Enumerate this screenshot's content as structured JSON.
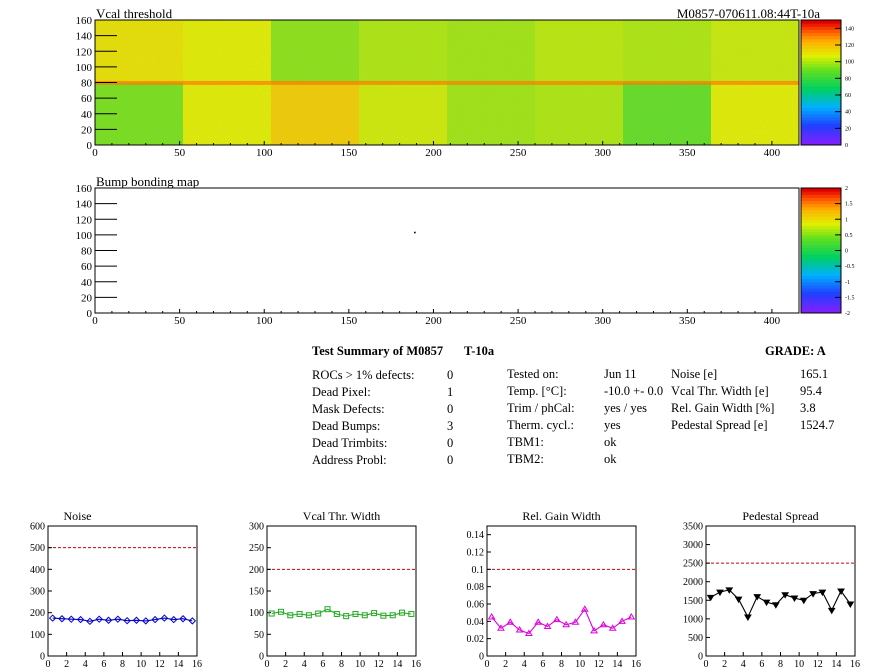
{
  "top_left_title": "Vcal threshold",
  "top_right_title": "M0857-070611.08:44T-10a",
  "map2_title": "Bump bonding map",
  "summary": {
    "title": "Test Summary of M0857",
    "temp_tag": "T-10a",
    "grade_label": "GRADE:  A",
    "left_rows": [
      {
        "label": "ROCs > 1% defects:",
        "value": "0"
      },
      {
        "label": "Dead Pixel:",
        "value": "1"
      },
      {
        "label": "Mask Defects:",
        "value": "0"
      },
      {
        "label": "Dead Bumps:",
        "value": "3"
      },
      {
        "label": "Dead Trimbits:",
        "value": "0"
      },
      {
        "label": "Address Probl:",
        "value": "0"
      }
    ],
    "mid_rows": [
      {
        "label": "Tested on:",
        "value": "Jun 11"
      },
      {
        "label": "Temp. [°C]:",
        "value": "-10.0 +- 0.0"
      },
      {
        "label": "Trim / phCal:",
        "value": "yes / yes"
      },
      {
        "label": "Therm. cycl.:",
        "value": "yes"
      },
      {
        "label": "TBM1:",
        "value": "ok"
      },
      {
        "label": "TBM2:",
        "value": "ok"
      }
    ],
    "right_rows": [
      {
        "label": "Noise [e]",
        "value": "165.1"
      },
      {
        "label": "Vcal Thr. Width [e]",
        "value": "95.4"
      },
      {
        "label": "Rel. Gain Width [%]",
        "value": "3.8"
      },
      {
        "label": "Pedestal Spread [e]",
        "value": "1524.7"
      }
    ]
  },
  "chart_data": [
    {
      "type": "heatmap",
      "title": "Vcal threshold",
      "xlim": [
        0,
        416
      ],
      "ylim": [
        0,
        160
      ],
      "x_ticks": [
        0,
        50,
        100,
        150,
        200,
        250,
        300,
        350,
        400
      ],
      "y_ticks": [
        0,
        20,
        40,
        60,
        80,
        100,
        120,
        140,
        160
      ],
      "colorbar_ticks": [
        0,
        20,
        40,
        60,
        80,
        100,
        120,
        140
      ],
      "colorbar_range": [
        0,
        150
      ],
      "roc_mean_thresholds_top": [
        112,
        108,
        95,
        100,
        98,
        102,
        100,
        104
      ],
      "roc_mean_thresholds_bottom": [
        92,
        108,
        118,
        105,
        98,
        100,
        88,
        108
      ]
    },
    {
      "type": "heatmap",
      "title": "Bump bonding map",
      "xlim": [
        0,
        416
      ],
      "ylim": [
        0,
        160
      ],
      "x_ticks": [
        0,
        50,
        100,
        150,
        200,
        250,
        300,
        350,
        400
      ],
      "y_ticks": [
        0,
        20,
        40,
        60,
        80,
        100,
        120,
        140,
        160
      ],
      "colorbar_ticks": [
        "2",
        "1.5",
        "1",
        "0.5",
        "0",
        "-0.5",
        "-1",
        "-1.5",
        "-2"
      ],
      "colorbar_range": [
        -2,
        2
      ],
      "points": [
        {
          "x": 189,
          "y": 103
        }
      ]
    },
    {
      "type": "line",
      "title": "Noise",
      "x": [
        0.5,
        1.5,
        2.5,
        3.5,
        4.5,
        5.5,
        6.5,
        7.5,
        8.5,
        9.5,
        10.5,
        11.5,
        12.5,
        13.5,
        14.5,
        15.5
      ],
      "values": [
        175,
        172,
        170,
        168,
        160,
        170,
        165,
        170,
        163,
        165,
        162,
        168,
        175,
        168,
        172,
        162
      ],
      "xlim": [
        0,
        16
      ],
      "ylim": [
        0,
        600
      ],
      "y_ticks": [
        0,
        100,
        200,
        300,
        400,
        500,
        600
      ],
      "x_ticks": [
        0,
        2,
        4,
        6,
        8,
        10,
        12,
        14,
        16
      ],
      "limit": 500,
      "color": "#0000cc",
      "marker": "diamond"
    },
    {
      "type": "line",
      "title": "Vcal Thr. Width",
      "x": [
        0.5,
        1.5,
        2.5,
        3.5,
        4.5,
        5.5,
        6.5,
        7.5,
        8.5,
        9.5,
        10.5,
        11.5,
        12.5,
        13.5,
        14.5,
        15.5
      ],
      "values": [
        98,
        102,
        94,
        97,
        94,
        98,
        108,
        97,
        92,
        97,
        94,
        99,
        93,
        94,
        100,
        97
      ],
      "xlim": [
        0,
        16
      ],
      "ylim": [
        0,
        300
      ],
      "y_ticks": [
        0,
        50,
        100,
        150,
        200,
        250,
        300
      ],
      "x_ticks": [
        0,
        2,
        4,
        6,
        8,
        10,
        12,
        14,
        16
      ],
      "limit": 200,
      "color": "#22aa22",
      "marker": "square"
    },
    {
      "type": "line",
      "title": "Rel. Gain Width",
      "x": [
        0.5,
        1.5,
        2.5,
        3.5,
        4.5,
        5.5,
        6.5,
        7.5,
        8.5,
        9.5,
        10.5,
        11.5,
        12.5,
        13.5,
        14.5,
        15.5
      ],
      "values": [
        0.045,
        0.032,
        0.039,
        0.03,
        0.026,
        0.039,
        0.034,
        0.042,
        0.036,
        0.039,
        0.054,
        0.029,
        0.036,
        0.032,
        0.04,
        0.045
      ],
      "xlim": [
        0,
        16
      ],
      "ylim": [
        0,
        0.15
      ],
      "y_ticks": [
        0,
        0.02,
        0.04,
        0.06,
        0.08,
        0.1,
        0.12,
        0.14
      ],
      "y_tick_labels": [
        "0",
        "0.02",
        "0.04",
        "0.06",
        "0.08",
        "0.1",
        "0.12",
        "0.14"
      ],
      "x_ticks": [
        0,
        2,
        4,
        6,
        8,
        10,
        12,
        14,
        16
      ],
      "limit": 0.1,
      "color": "#dd00dd",
      "marker": "triangle"
    },
    {
      "type": "line",
      "title": "Pedestal Spread",
      "x": [
        0.5,
        1.5,
        2.5,
        3.5,
        4.5,
        5.5,
        6.5,
        7.5,
        8.5,
        9.5,
        10.5,
        11.5,
        12.5,
        13.5,
        14.5,
        15.5
      ],
      "values": [
        1580,
        1720,
        1780,
        1530,
        1050,
        1600,
        1450,
        1380,
        1650,
        1560,
        1500,
        1680,
        1720,
        1230,
        1750,
        1400
      ],
      "xlim": [
        0,
        16
      ],
      "ylim": [
        0,
        3500
      ],
      "y_ticks": [
        0,
        500,
        1000,
        1500,
        2000,
        2500,
        3000,
        3500
      ],
      "x_ticks": [
        0,
        2,
        4,
        6,
        8,
        10,
        12,
        14,
        16
      ],
      "limit": 2500,
      "color": "#000000",
      "marker": "triangle-down"
    }
  ]
}
